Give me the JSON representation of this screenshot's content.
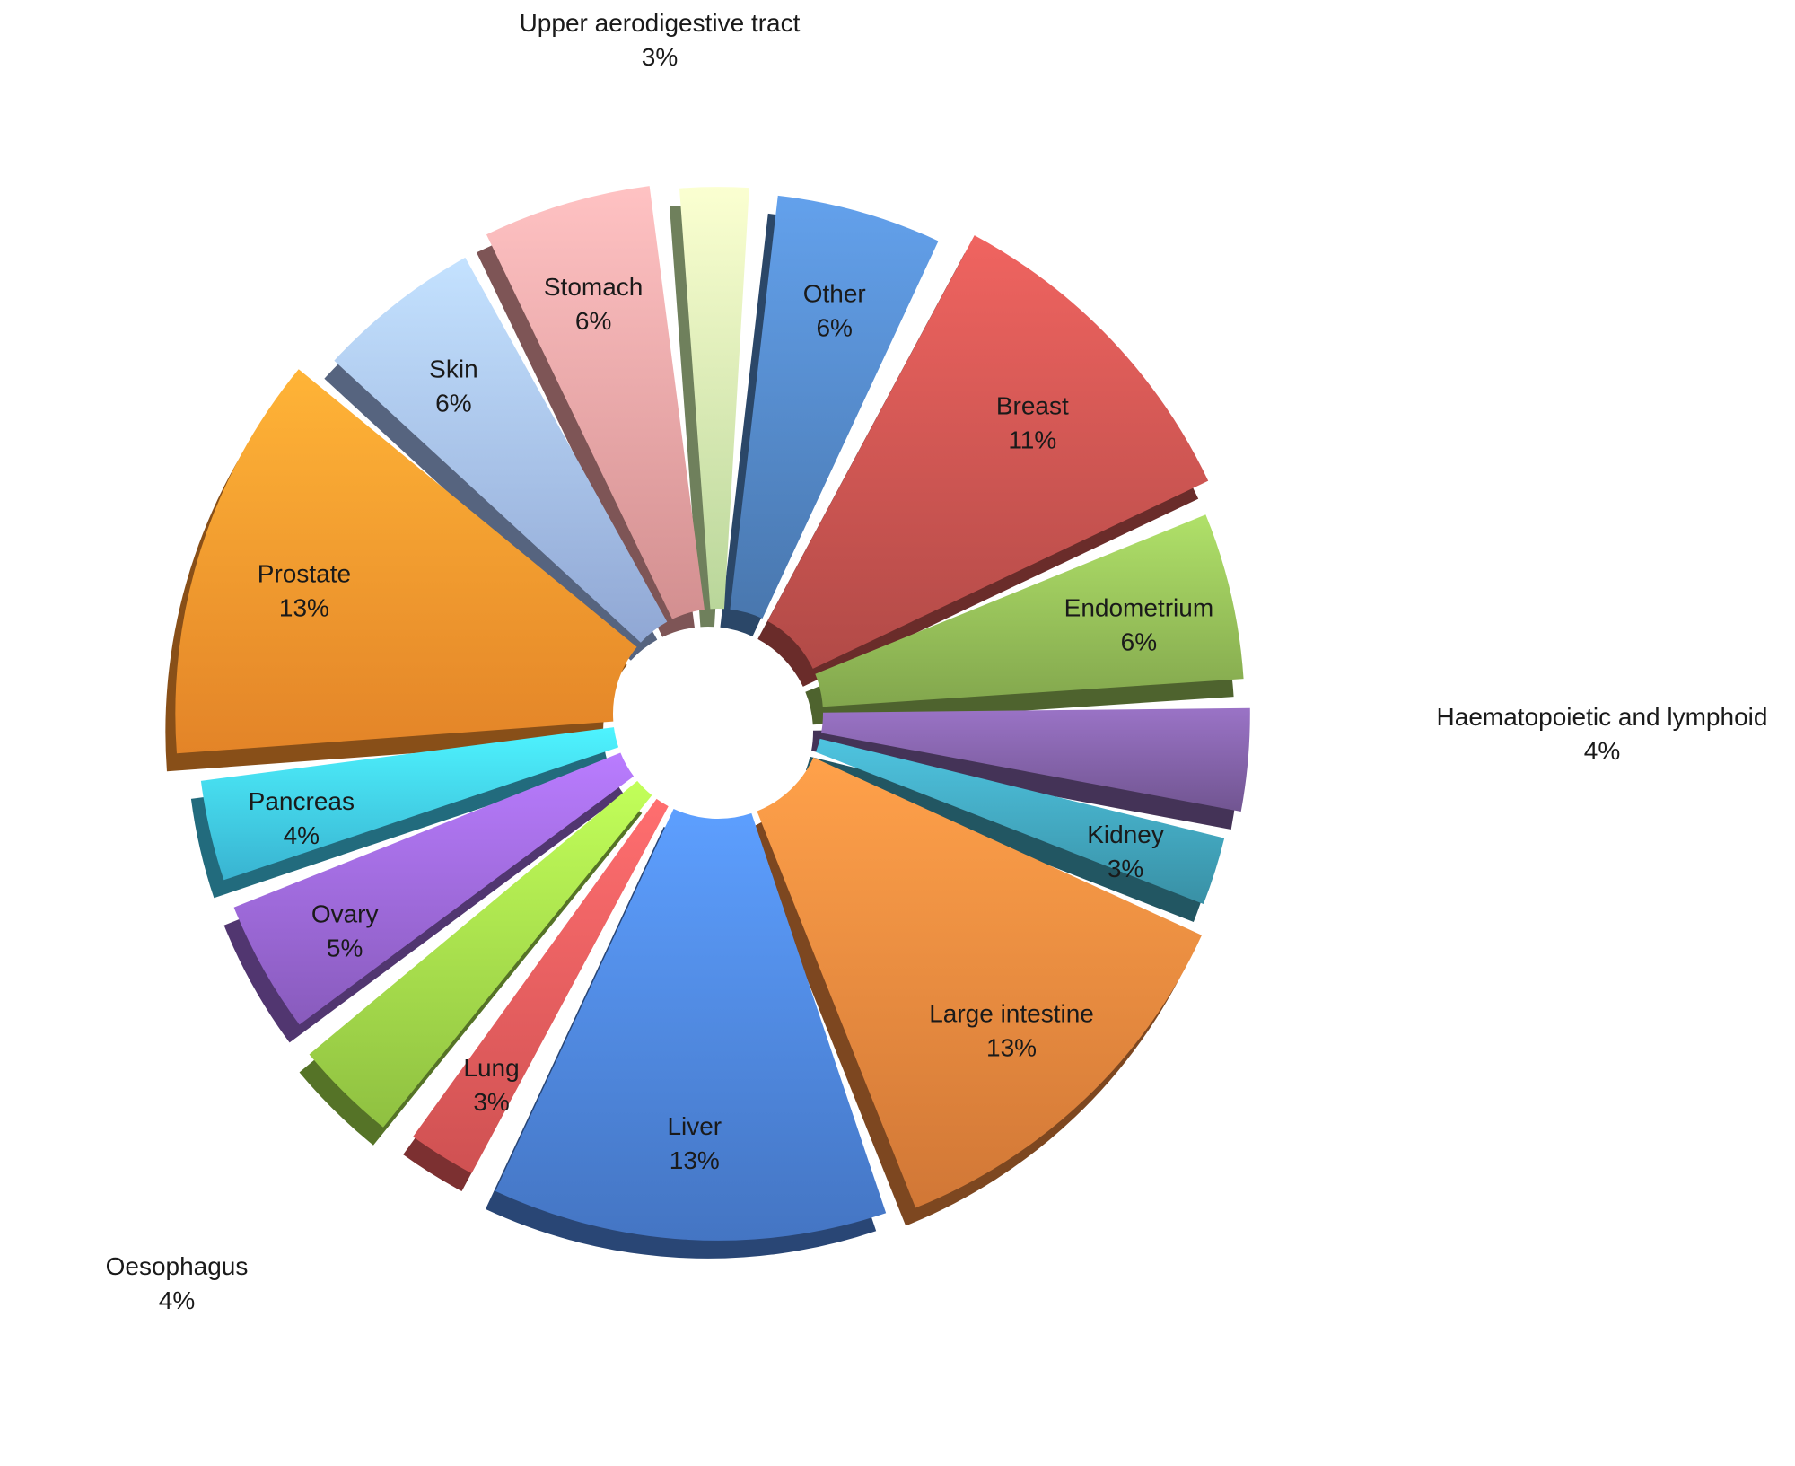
{
  "chart_data": {
    "type": "pie",
    "title": "",
    "slices": [
      {
        "label": "Other",
        "value": 6,
        "pct_label": "6%",
        "color": "#4f81bd",
        "label_inside": true
      },
      {
        "label": "Breast",
        "value": 11,
        "pct_label": "11%",
        "color": "#c0504d",
        "label_inside": true
      },
      {
        "label": "Endometrium",
        "value": 6,
        "pct_label": "6%",
        "color": "#8db454",
        "label_inside": true
      },
      {
        "label": "Haematopoietic and lymphoid",
        "value": 4,
        "pct_label": "4%",
        "color": "#7b5c9e",
        "label_inside": false
      },
      {
        "label": "Kidney",
        "value": 3,
        "pct_label": "3%",
        "color": "#3e9db3",
        "label_inside": true
      },
      {
        "label": "Large intestine",
        "value": 13,
        "pct_label": "13%",
        "color": "#e3813b",
        "label_inside": true
      },
      {
        "label": "Liver",
        "value": 13,
        "pct_label": "13%",
        "color": "#4a7fd4",
        "label_inside": true
      },
      {
        "label": "Lung",
        "value": 3,
        "pct_label": "3%",
        "color": "#e15859",
        "label_inside": true
      },
      {
        "label": "Oesophagus",
        "value": 4,
        "pct_label": "4%",
        "color": "#9bd147",
        "label_inside": false
      },
      {
        "label": "Ovary",
        "value": 5,
        "pct_label": "5%",
        "color": "#9463cc",
        "label_inside": true
      },
      {
        "label": "Pancreas",
        "value": 4,
        "pct_label": "4%",
        "color": "#3ec3e3",
        "label_inside": true
      },
      {
        "label": "Prostate",
        "value": 13,
        "pct_label": "13%",
        "color": "#f7902c",
        "label_inside": true
      },
      {
        "label": "Skin",
        "value": 6,
        "pct_label": "6%",
        "color": "#9db5e6",
        "label_inside": true
      },
      {
        "label": "Stomach",
        "value": 6,
        "pct_label": "6%",
        "color": "#e59b9c",
        "label_inside": true
      },
      {
        "label": "Upper aerodigestive tract",
        "value": 3,
        "pct_label": "3%",
        "color": "#c9e9a7",
        "label_inside": false
      }
    ]
  }
}
